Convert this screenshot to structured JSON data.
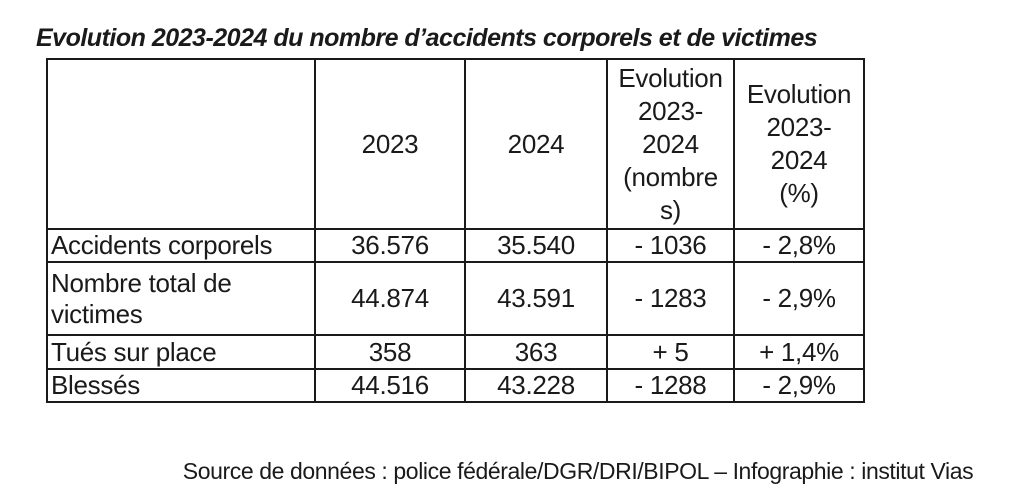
{
  "title": "Evolution 2023-2024 du nombre d’accidents corporels et de victimes",
  "table": {
    "columns": [
      "",
      "2023",
      "2024",
      "Evolution\n2023-\n2024\n(nombre\ns)",
      "Evolution\n2023-\n2024\n(%)"
    ],
    "rows": [
      {
        "label": "Accidents corporels",
        "y2023": "36.576",
        "y2024": "35.540",
        "evolution_nombres": "- 1036",
        "evolution_pct": "- 2,8%"
      },
      {
        "label": "Nombre total de victimes",
        "y2023": "44.874",
        "y2024": "43.591",
        "evolution_nombres": "- 1283",
        "evolution_pct": "- 2,9%"
      },
      {
        "label": "Tués sur place",
        "y2023": "358",
        "y2024": "363",
        "evolution_nombres": "+ 5",
        "evolution_pct": "+ 1,4%"
      },
      {
        "label": "Blessés",
        "y2023": "44.516",
        "y2024": "43.228",
        "evolution_nombres": "- 1288",
        "evolution_pct": "- 2,9%"
      }
    ]
  },
  "source": "Source de données : police fédérale/DGR/DRI/BIPOL – Infographie : institut Vias",
  "colors": {
    "text": "#1a1a1a",
    "border": "#1a1a1a",
    "background": "#ffffff"
  },
  "chart_data": {
    "type": "table",
    "title": "Evolution 2023-2024 du nombre d’accidents corporels et de victimes",
    "columns": [
      "",
      "2023",
      "2024",
      "Evolution 2023-2024 (nombres)",
      "Evolution 2023-2024 (%)"
    ],
    "rows": [
      {
        "category": "Accidents corporels",
        "value_2023": 36576,
        "value_2024": 35540,
        "evolution_nombres": -1036,
        "evolution_pct": -2.8
      },
      {
        "category": "Nombre total de victimes",
        "value_2023": 44874,
        "value_2024": 43591,
        "evolution_nombres": -1283,
        "evolution_pct": -2.9
      },
      {
        "category": "Tués sur place",
        "value_2023": 358,
        "value_2024": 363,
        "evolution_nombres": 5,
        "evolution_pct": 1.4
      },
      {
        "category": "Blessés",
        "value_2023": 44516,
        "value_2024": 43228,
        "evolution_nombres": -1288,
        "evolution_pct": -2.9
      }
    ],
    "source": "Source de données : police fédérale/DGR/DRI/BIPOL – Infographie : institut Vias",
    "number_format": "thousands separator '.', decimal comma",
    "legend_position": "none",
    "grid": true
  }
}
